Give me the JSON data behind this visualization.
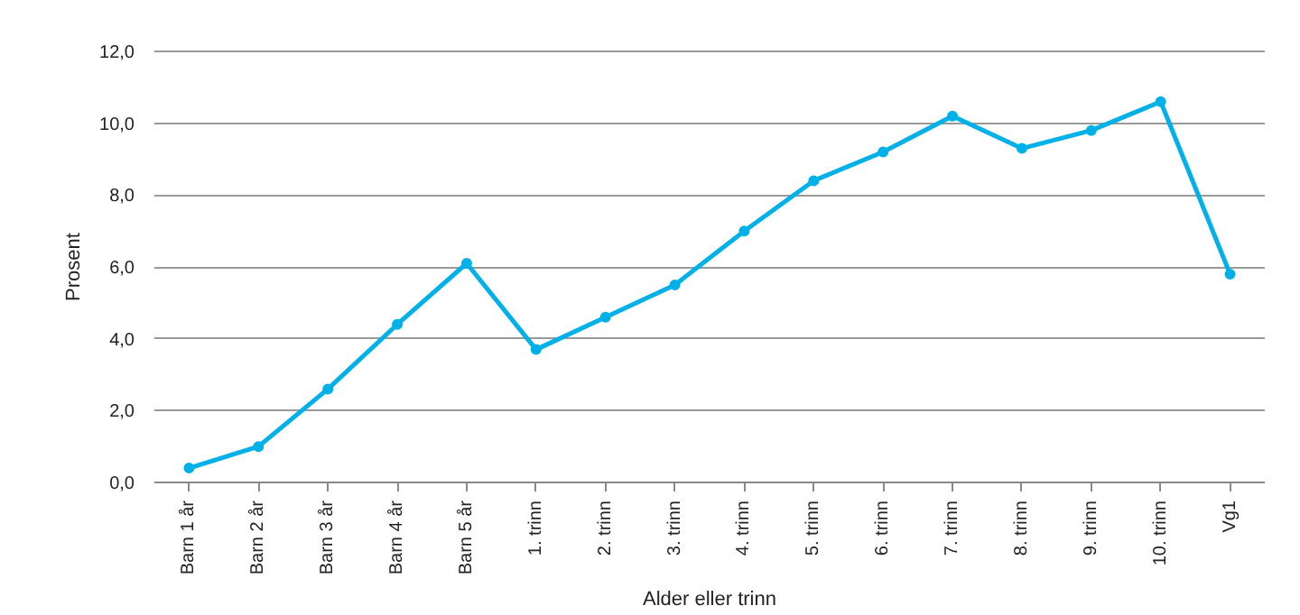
{
  "chart_data": {
    "type": "line",
    "xlabel": "Alder eller trinn",
    "ylabel": "Prosent",
    "categories": [
      "Barn 1 år",
      "Barn 2 år",
      "Barn 3 år",
      "Barn 4 år",
      "Barn 5 år",
      "1. trinn",
      "2. trinn",
      "3. trinn",
      "4. trinn",
      "5. trinn",
      "6. trinn",
      "7. trinn",
      "8. trinn",
      "9. trinn",
      "10. trinn",
      "Vg1"
    ],
    "series": [
      {
        "color": "#00b0e8",
        "values": [
          0.4,
          1.0,
          2.6,
          4.4,
          6.1,
          3.7,
          4.6,
          5.5,
          7.0,
          8.4,
          9.2,
          10.2,
          9.3,
          9.8,
          10.6,
          5.8
        ]
      }
    ],
    "ylim": [
      0,
      12
    ],
    "yticks": [
      {
        "value": 0,
        "label": "0,0"
      },
      {
        "value": 2,
        "label": "2,0"
      },
      {
        "value": 4,
        "label": "4,0"
      },
      {
        "value": 6,
        "label": "6,0"
      },
      {
        "value": 8,
        "label": "8,0"
      },
      {
        "value": 10,
        "label": "10,0"
      },
      {
        "value": 12,
        "label": "12,0"
      }
    ],
    "grid": "y",
    "marker": "circle",
    "line_style": "solid"
  }
}
